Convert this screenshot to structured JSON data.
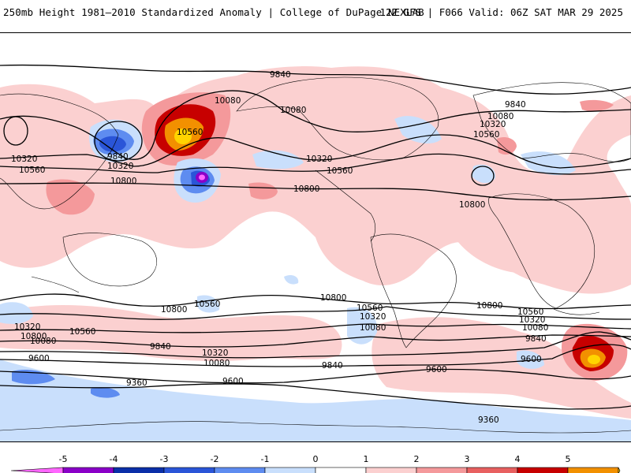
{
  "header": {
    "left_title": "250mb Height 1981–2010 Standardized Anomaly | College of DuPage NEXLAB",
    "right_title": "12Z GFS | F066 Valid: 06Z SAT MAR 29 2025"
  },
  "contour_labels": [
    "9840",
    "10080",
    "10560",
    "9840",
    "10320",
    "10320",
    "10560",
    "10800",
    "10080",
    "10800",
    "10320",
    "10560",
    "10800",
    "9840",
    "10080",
    "10320",
    "10560",
    "10800",
    "10800",
    "10560",
    "10800",
    "10560",
    "10320",
    "10080",
    "10800",
    "10560",
    "10320",
    "10080",
    "9840",
    "9600",
    "10320",
    "10560",
    "10080",
    "9840",
    "10320",
    "10080",
    "9600",
    "9840",
    "9600",
    "9360",
    "9600",
    "9360"
  ],
  "colorbar": {
    "ticks": [
      "-5",
      "-4",
      "-3",
      "-2",
      "-1",
      "0",
      "1",
      "2",
      "3",
      "4",
      "5"
    ],
    "colors": [
      "#ff66ff",
      "#8a00c8",
      "#0a2fa8",
      "#2a55d8",
      "#5e8cf0",
      "#c9dffc",
      "#ffffff",
      "#fbd0d0",
      "#f4999b",
      "#e86060",
      "#c70000",
      "#f29000",
      "#ffd400"
    ]
  }
}
